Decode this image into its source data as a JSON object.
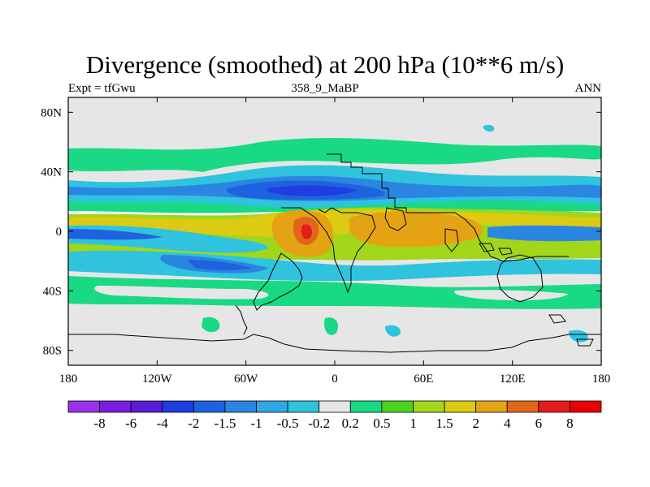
{
  "chart_data": {
    "type": "heatmap",
    "title": "Divergence (smoothed) at 200 hPa (10**6 m/s)",
    "subtitle_left": "Expt = tfGwu",
    "subtitle_center": "358_9_MaBP",
    "subtitle_right": "ANN",
    "xlim": [
      -180,
      180
    ],
    "ylim": [
      -90,
      90
    ],
    "x_ticks": [
      {
        "value": -180,
        "label": "180"
      },
      {
        "value": -120,
        "label": "120W"
      },
      {
        "value": -60,
        "label": "60W"
      },
      {
        "value": 0,
        "label": "0"
      },
      {
        "value": 60,
        "label": "60E"
      },
      {
        "value": 120,
        "label": "120E"
      },
      {
        "value": 180,
        "label": "180"
      }
    ],
    "y_ticks": [
      {
        "value": 80,
        "label": "80N"
      },
      {
        "value": 40,
        "label": "40N"
      },
      {
        "value": 0,
        "label": "0"
      },
      {
        "value": -40,
        "label": "40S"
      },
      {
        "value": -80,
        "label": "80S"
      }
    ],
    "colorbar": {
      "levels": [
        "-8",
        "-6",
        "-4",
        "-2",
        "-1.5",
        "-1",
        "-0.5",
        "-0.2",
        "0.2",
        "0.5",
        "1",
        "1.5",
        "2",
        "4",
        "6",
        "8"
      ],
      "colors": [
        "#9b30e8",
        "#7a1ee0",
        "#5a1bd8",
        "#1e3ee0",
        "#1f62e0",
        "#2a86e0",
        "#30a6e6",
        "#2fc3de",
        "#e6e6e6",
        "#19d985",
        "#4ed31c",
        "#a2d61b",
        "#dccb12",
        "#e4a312",
        "#e2661a",
        "#e41c1c",
        "#e80000"
      ]
    },
    "fields": [
      {
        "lon": -160,
        "lat": 44,
        "value": 0.45
      },
      {
        "lon": -100,
        "lat": 46,
        "value": 0.4
      },
      {
        "lon": -40,
        "lat": 50,
        "value": 0.4
      },
      {
        "lon": 20,
        "lat": 50,
        "value": 0.45
      },
      {
        "lon": 100,
        "lat": 52,
        "value": 0.45
      },
      {
        "lon": 160,
        "lat": 48,
        "value": 0.4
      },
      {
        "lon": -150,
        "lat": 28,
        "value": -0.8
      },
      {
        "lon": -30,
        "lat": 28,
        "value": -1.2
      },
      {
        "lon": 10,
        "lat": 32,
        "value": -1.6
      },
      {
        "lon": 40,
        "lat": 38,
        "value": -1.4
      },
      {
        "lon": 120,
        "lat": 26,
        "value": -0.9
      },
      {
        "lon": -150,
        "lat": 10,
        "value": 1.8
      },
      {
        "lon": 150,
        "lat": 10,
        "value": 1.6
      },
      {
        "lon": -20,
        "lat": 2,
        "value": 3.2
      },
      {
        "lon": 45,
        "lat": 5,
        "value": 2.4
      },
      {
        "lon": 80,
        "lat": -2,
        "value": 2.2
      },
      {
        "lon": -160,
        "lat": -4,
        "value": -1.5
      },
      {
        "lon": -100,
        "lat": 0,
        "value": -0.9
      },
      {
        "lon": 150,
        "lat": -2,
        "value": -1.3
      },
      {
        "lon": -130,
        "lat": -24,
        "value": -1.9
      },
      {
        "lon": -30,
        "lat": -28,
        "value": -1.0
      },
      {
        "lon": 60,
        "lat": -26,
        "value": -0.7
      },
      {
        "lon": -130,
        "lat": -42,
        "value": 0.5
      },
      {
        "lon": -40,
        "lat": -46,
        "value": 0.5
      },
      {
        "lon": 60,
        "lat": -40,
        "value": 0.3
      },
      {
        "lon": 140,
        "lat": -52,
        "value": 0.4
      }
    ]
  }
}
